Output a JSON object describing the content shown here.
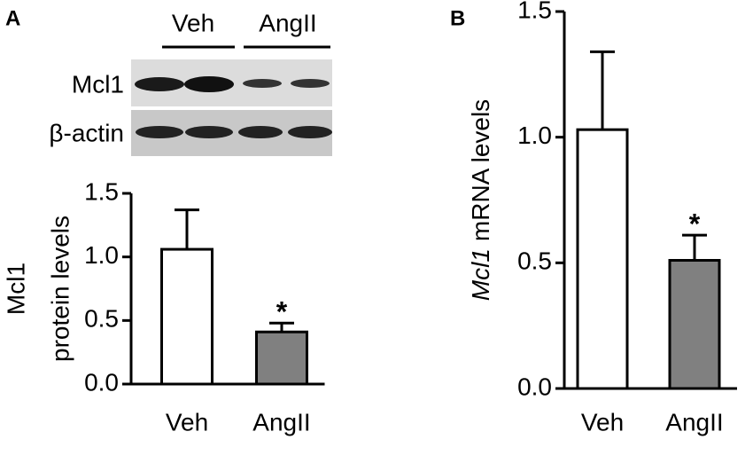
{
  "figure": {
    "panel_labels": [
      "A",
      "B"
    ],
    "blot": {
      "groups": [
        "Veh",
        "AngII"
      ],
      "rows": [
        "Mcl1",
        "β-actin"
      ]
    }
  },
  "chart_data": [
    {
      "type": "bar",
      "categories": [
        "Veh",
        "AngII"
      ],
      "values": [
        1.06,
        0.41
      ],
      "errors": [
        0.31,
        0.07
      ],
      "colors": [
        "#ffffff",
        "#808080"
      ],
      "significance": [
        null,
        "*"
      ],
      "ylabel": [
        "Mcl1",
        "protein levels"
      ],
      "ylim": [
        0,
        1.5
      ],
      "yticks": [
        {
          "value": 0,
          "label": "0.0"
        },
        {
          "value": 0.5,
          "label": "0.5"
        },
        {
          "value": 1,
          "label": "1.0"
        },
        {
          "value": 1.5,
          "label": "1.5"
        }
      ]
    },
    {
      "type": "bar",
      "categories": [
        "Veh",
        "AngII"
      ],
      "values": [
        1.03,
        0.51
      ],
      "errors": [
        0.31,
        0.1
      ],
      "colors": [
        "#ffffff",
        "#808080"
      ],
      "significance": [
        null,
        "*"
      ],
      "ylabel": [
        "Mcl1",
        "mRNA levels"
      ],
      "ylim": [
        0,
        1.5
      ],
      "yticks": [
        {
          "value": 0,
          "label": "0.0"
        },
        {
          "value": 0.5,
          "label": "0.5"
        },
        {
          "value": 1,
          "label": "1.0"
        },
        {
          "value": 1.5,
          "label": "1.5"
        }
      ]
    }
  ]
}
